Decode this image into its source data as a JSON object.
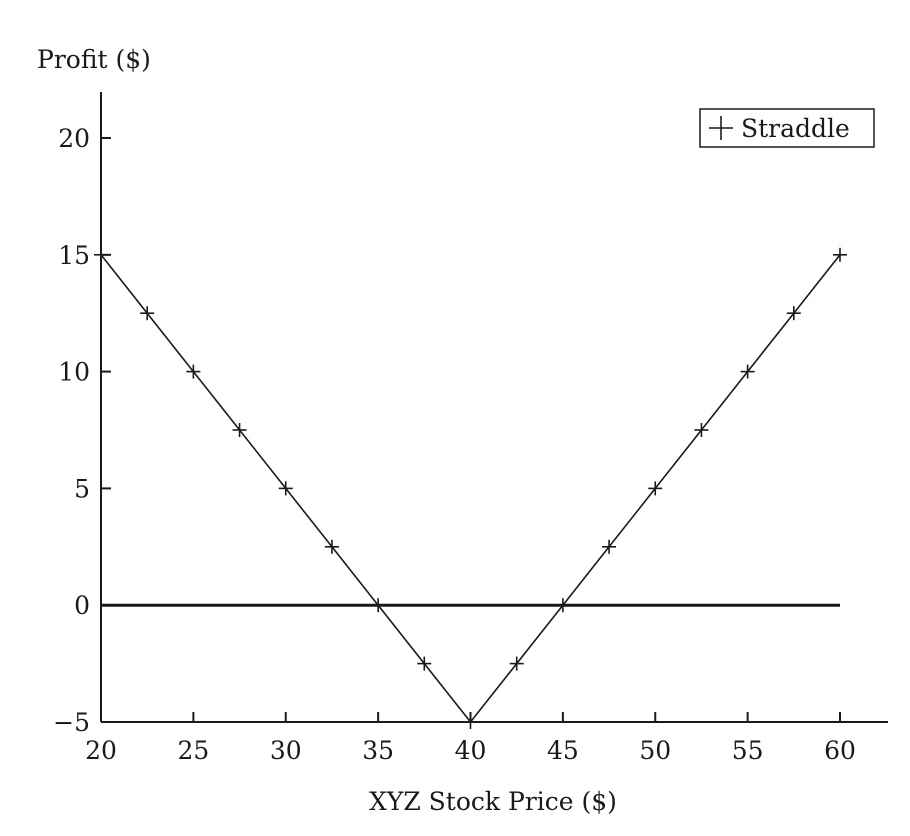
{
  "chart_data": {
    "type": "line",
    "ylabel": "Profit ($)",
    "xlabel": "XYZ Stock Price ($)",
    "xlim": [
      20,
      60
    ],
    "ylim": [
      -5,
      22
    ],
    "x_ticks": [
      20,
      25,
      30,
      35,
      40,
      45,
      50,
      55,
      60
    ],
    "y_ticks": [
      -5,
      0,
      5,
      10,
      15,
      20
    ],
    "y_tick_labels": [
      "−5",
      "0",
      "5",
      "10",
      "15",
      "20"
    ],
    "grid": false,
    "legend_position": "top-right",
    "zero_line": true,
    "series": [
      {
        "name": "Straddle",
        "marker": "+",
        "color": "#1a1a1a",
        "x": [
          20,
          22.5,
          25,
          27.5,
          30,
          32.5,
          35,
          37.5,
          40,
          42.5,
          45,
          47.5,
          50,
          52.5,
          55,
          57.5,
          60
        ],
        "y": [
          15,
          12.5,
          10,
          7.5,
          5,
          2.5,
          0,
          -2.5,
          -5,
          -2.5,
          0,
          2.5,
          5,
          7.5,
          10,
          12.5,
          15
        ]
      }
    ]
  }
}
